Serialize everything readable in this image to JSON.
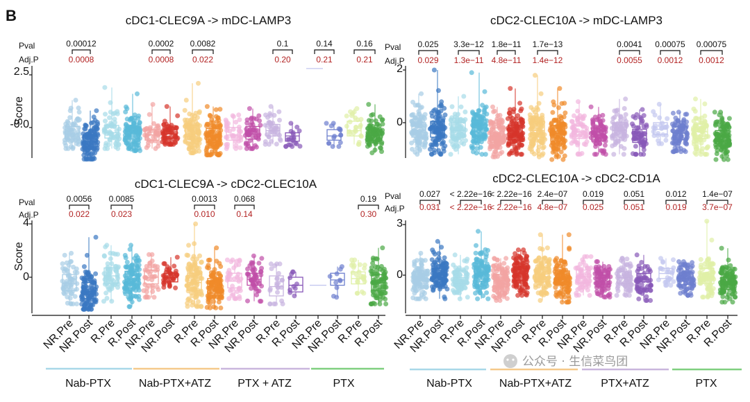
{
  "figure": {
    "panel_label": "B",
    "row_labels": {
      "pval": "Pval",
      "adj": "Adj.P"
    },
    "y_axis_label": "Score",
    "watermark": "公众号 · 生信菜鸟团",
    "group_colors": {
      "Nab-PTX": "#a8d8e8",
      "Nab-PTX+ATZ": "#f5c98a",
      "PTX + ATZ": "#c9b6dd",
      "PTX": "#7fcf7f"
    },
    "sample_colors": [
      "#a8cde6",
      "#3a78c2",
      "#a6dbe8",
      "#59b9d8",
      "#f2a4a2",
      "#d6352b",
      "#f7cd7d",
      "#f08a2a",
      "#f2b6de",
      "#c04fa8",
      "#c7b3df",
      "#8858b8",
      "#c3c7ef",
      "#6d7fce",
      "#dff0a6",
      "#4aa845"
    ],
    "left_x_categories": [
      "NR.Pre",
      "NR.Post",
      "R.Pre",
      "R.Post",
      "NR.Pre",
      "NR.Post",
      "R.Pre",
      "R.Post",
      "NR.Pre",
      "NR.Post",
      "R.Pre",
      "R.Post",
      "NR.Pre",
      "NR.Post",
      "R.Pre",
      "R.Post"
    ],
    "right_x_categories": [
      "NR.Pre",
      "NR.Post",
      "R.Pre",
      "R.Post",
      "NR.Pre",
      "NR.Post",
      "R.Pre",
      "R.Post",
      "NR.Pre",
      "NR.Post",
      "R.Pre",
      "R.Post",
      "NR.Pre",
      "NR.Post",
      "R.Pre",
      "R.Post"
    ],
    "left_groups": [
      "Nab-PTX",
      "Nab-PTX+ATZ",
      "PTX + ATZ",
      "PTX"
    ],
    "right_groups": [
      "Nab-PTX",
      "Nab-PTX+ATZ",
      "PTX+ATZ",
      "PTX"
    ]
  },
  "chart_data": [
    {
      "type": "box",
      "title": "cDC1-CLEC9A -> mDC-LAMP3",
      "ylabel": "Score",
      "yticks": [
        "2.5",
        "-0.0"
      ],
      "ytick_values": [
        2.5,
        0
      ],
      "ylim": [
        -1.6,
        3.3
      ],
      "comparisons": [
        {
          "pair": [
            0,
            1
          ],
          "pval": "0.00012",
          "adj": "0.0008"
        },
        {
          "pair": [
            4,
            5
          ],
          "pval": "0.0002",
          "adj": "0.0008"
        },
        {
          "pair": [
            6,
            7
          ],
          "pval": "0.0082",
          "adj": "0.022"
        },
        {
          "pair": [
            10,
            11
          ],
          "pval": "0.1",
          "adj": "0.20"
        },
        {
          "pair": [
            12,
            13
          ],
          "pval": "0.14",
          "adj": "0.21"
        },
        {
          "pair": [
            14,
            15
          ],
          "pval": "0.16",
          "adj": "0.21"
        }
      ],
      "boxes": [
        {
          "cat": "NR.Pre",
          "q1": -0.55,
          "median": -0.3,
          "q3": 0.05,
          "min": -1.0,
          "max": 1.3,
          "n": 70
        },
        {
          "cat": "NR.Post",
          "q1": -0.9,
          "median": -0.65,
          "q3": -0.35,
          "min": -1.5,
          "max": 0.8,
          "n": 150
        },
        {
          "cat": "R.Pre",
          "q1": -0.5,
          "median": -0.25,
          "q3": 0.1,
          "min": -1.0,
          "max": 1.9,
          "n": 60
        },
        {
          "cat": "R.Post",
          "q1": -0.55,
          "median": -0.3,
          "q3": 0.05,
          "min": -1.1,
          "max": 1.6,
          "n": 160
        },
        {
          "cat": "NR.Pre",
          "q1": -0.6,
          "median": -0.35,
          "q3": -0.1,
          "min": -1.0,
          "max": 1.1,
          "n": 40
        },
        {
          "cat": "NR.Post",
          "q1": -0.5,
          "median": -0.3,
          "q3": -0.1,
          "min": -0.8,
          "max": 1.0,
          "n": 60
        },
        {
          "cat": "R.Pre",
          "q1": -0.55,
          "median": -0.3,
          "q3": 0.1,
          "min": -1.2,
          "max": 2.1,
          "n": 110
        },
        {
          "cat": "R.Post",
          "q1": -0.7,
          "median": -0.4,
          "q3": -0.05,
          "min": -1.3,
          "max": 1.0,
          "n": 140
        },
        {
          "cat": "NR.Pre",
          "q1": -0.6,
          "median": -0.35,
          "q3": 0.0,
          "min": -1.0,
          "max": 0.6,
          "n": 40
        },
        {
          "cat": "NR.Post",
          "q1": -0.55,
          "median": -0.3,
          "q3": 0.05,
          "min": -1.0,
          "max": 0.9,
          "n": 50
        },
        {
          "cat": "R.Pre",
          "q1": -0.4,
          "median": -0.15,
          "q3": 0.15,
          "min": -0.8,
          "max": 1.0,
          "n": 40
        },
        {
          "cat": "R.Post",
          "q1": -0.65,
          "median": -0.4,
          "q3": -0.25,
          "min": -0.9,
          "max": 0.2,
          "n": 20
        },
        {
          "cat": "NR.Pre",
          "q1": null,
          "median": 2.8,
          "q3": null,
          "min": 2.8,
          "max": 2.8,
          "n": 0
        },
        {
          "cat": "NR.Post",
          "q1": -0.6,
          "median": -0.4,
          "q3": -0.1,
          "min": -0.9,
          "max": 0.2,
          "n": 15
        },
        {
          "cat": "R.Pre",
          "q1": -0.4,
          "median": -0.15,
          "q3": 0.3,
          "min": -0.8,
          "max": 0.9,
          "n": 25
        },
        {
          "cat": "R.Post",
          "q1": -0.6,
          "median": -0.35,
          "q3": -0.1,
          "min": -1.2,
          "max": 1.1,
          "n": 90
        }
      ]
    },
    {
      "type": "box",
      "title": "cDC2-CLEC10A -> mDC-LAMP3",
      "ylabel": "",
      "yticks": [
        "2",
        "0"
      ],
      "ytick_values": [
        2,
        0
      ],
      "ylim": [
        -1.6,
        2.5
      ],
      "comparisons": [
        {
          "pair": [
            0,
            1
          ],
          "pval": "0.025",
          "adj": "0.029"
        },
        {
          "pair": [
            2,
            3
          ],
          "pval": "3.3e−12",
          "adj": "1.3e−11"
        },
        {
          "pair": [
            4,
            5
          ],
          "pval": "1.8e−11",
          "adj": "4.8e−11"
        },
        {
          "pair": [
            6,
            7
          ],
          "pval": "1.7e−13",
          "adj": "1.4e−12"
        },
        {
          "pair": [
            10,
            11
          ],
          "pval": "0.0041",
          "adj": "0.0055"
        },
        {
          "pair": [
            12,
            13
          ],
          "pval": "0.00075",
          "adj": "0.0012"
        },
        {
          "pair": [
            14,
            15
          ],
          "pval": "0.00075",
          "adj": "0.0012"
        }
      ],
      "boxes": [
        {
          "cat": "NR.Pre",
          "q1": -0.55,
          "median": -0.3,
          "q3": 0.0,
          "min": -1.2,
          "max": 1.1,
          "n": 150
        },
        {
          "cat": "NR.Post",
          "q1": -0.55,
          "median": -0.25,
          "q3": 0.05,
          "min": -1.2,
          "max": 2.0,
          "n": 200
        },
        {
          "cat": "R.Pre",
          "q1": -0.55,
          "median": -0.3,
          "q3": 0.0,
          "min": -1.2,
          "max": 1.0,
          "n": 80
        },
        {
          "cat": "R.Post",
          "q1": -0.5,
          "median": -0.2,
          "q3": 0.1,
          "min": -1.2,
          "max": 1.9,
          "n": 260
        },
        {
          "cat": "NR.Pre",
          "q1": -0.75,
          "median": -0.5,
          "q3": -0.2,
          "min": -1.3,
          "max": 0.6,
          "n": 150
        },
        {
          "cat": "NR.Post",
          "q1": -0.65,
          "median": -0.4,
          "q3": -0.1,
          "min": -1.2,
          "max": 1.3,
          "n": 150
        },
        {
          "cat": "R.Pre",
          "q1": -0.55,
          "median": -0.3,
          "q3": 0.05,
          "min": -1.3,
          "max": 1.8,
          "n": 260
        },
        {
          "cat": "R.Post",
          "q1": -0.7,
          "median": -0.4,
          "q3": -0.1,
          "min": -1.4,
          "max": 1.3,
          "n": 280
        },
        {
          "cat": "NR.Pre",
          "q1": -0.6,
          "median": -0.35,
          "q3": -0.1,
          "min": -1.2,
          "max": 0.8,
          "n": 60
        },
        {
          "cat": "NR.Post",
          "q1": -0.7,
          "median": -0.45,
          "q3": -0.2,
          "min": -1.2,
          "max": 0.6,
          "n": 80
        },
        {
          "cat": "R.Pre",
          "q1": -0.55,
          "median": -0.3,
          "q3": 0.0,
          "min": -1.2,
          "max": 0.9,
          "n": 70
        },
        {
          "cat": "R.Post",
          "q1": -0.75,
          "median": -0.5,
          "q3": -0.25,
          "min": -1.2,
          "max": 0.5,
          "n": 60
        },
        {
          "cat": "NR.Pre",
          "q1": -0.45,
          "median": -0.25,
          "q3": 0.0,
          "min": -0.8,
          "max": 0.7,
          "n": 25
        },
        {
          "cat": "NR.Post",
          "q1": -0.65,
          "median": -0.4,
          "q3": -0.15,
          "min": -1.1,
          "max": 0.4,
          "n": 90
        },
        {
          "cat": "R.Pre",
          "q1": -0.6,
          "median": -0.35,
          "q3": -0.05,
          "min": -1.2,
          "max": 0.9,
          "n": 80
        },
        {
          "cat": "R.Post",
          "q1": -0.8,
          "median": -0.55,
          "q3": -0.3,
          "min": -1.4,
          "max": 0.4,
          "n": 220
        }
      ]
    },
    {
      "type": "box",
      "title": "cDC1-CLEC9A -> cDC2-CLEC10A",
      "ylabel": "Score",
      "yticks": [
        "4",
        "0"
      ],
      "ytick_values": [
        4,
        0
      ],
      "ylim": [
        -2.6,
        5.8
      ],
      "comparisons": [
        {
          "pair": [
            0,
            1
          ],
          "pval": "0.0056",
          "adj": "0.022"
        },
        {
          "pair": [
            2,
            3
          ],
          "pval": "0.0085",
          "adj": "0.023"
        },
        {
          "pair": [
            6,
            7
          ],
          "pval": "0.0013",
          "adj": "0.010"
        },
        {
          "pair": [
            8,
            9
          ],
          "pval": "0.068",
          "adj": "0.14"
        },
        {
          "pair": [
            14,
            15
          ],
          "pval": "0.19",
          "adj": "0.30"
        }
      ],
      "boxes": [
        {
          "cat": "NR.Pre",
          "q1": -1.0,
          "median": -0.45,
          "q3": 0.2,
          "min": -2.0,
          "max": 1.8,
          "n": 60
        },
        {
          "cat": "NR.Post",
          "q1": -1.6,
          "median": -1.05,
          "q3": -0.4,
          "min": -2.4,
          "max": 3.0,
          "n": 120
        },
        {
          "cat": "R.Pre",
          "q1": -0.5,
          "median": 0.1,
          "q3": 0.7,
          "min": -1.8,
          "max": 2.4,
          "n": 60
        },
        {
          "cat": "R.Post",
          "q1": -0.8,
          "median": -0.15,
          "q3": 0.45,
          "min": -2.2,
          "max": 2.4,
          "n": 130
        },
        {
          "cat": "NR.Pre",
          "q1": -0.5,
          "median": 0.0,
          "q3": 0.5,
          "min": -1.5,
          "max": 1.7,
          "n": 40
        },
        {
          "cat": "NR.Post",
          "q1": -0.35,
          "median": 0.0,
          "q3": 0.3,
          "min": -0.8,
          "max": 1.5,
          "n": 40
        },
        {
          "cat": "R.Pre",
          "q1": -1.0,
          "median": -0.4,
          "q3": 0.3,
          "min": -2.2,
          "max": 4.0,
          "n": 110
        },
        {
          "cat": "R.Post",
          "q1": -1.2,
          "median": -0.7,
          "q3": -0.1,
          "min": -2.3,
          "max": 2.2,
          "n": 130
        },
        {
          "cat": "NR.Pre",
          "q1": -0.8,
          "median": -0.3,
          "q3": 0.3,
          "min": -1.6,
          "max": 1.3,
          "n": 40
        },
        {
          "cat": "NR.Post",
          "q1": -0.6,
          "median": -0.15,
          "q3": 0.3,
          "min": -1.8,
          "max": 1.6,
          "n": 50
        },
        {
          "cat": "R.Pre",
          "q1": -1.4,
          "median": -0.7,
          "q3": 0.1,
          "min": -2.0,
          "max": 1.0,
          "n": 25
        },
        {
          "cat": "R.Post",
          "q1": -1.1,
          "median": -0.6,
          "q3": 0.0,
          "min": -1.4,
          "max": 0.4,
          "n": 10
        },
        {
          "cat": "NR.Pre",
          "q1": null,
          "median": -0.6,
          "q3": null,
          "min": -0.6,
          "max": -0.6,
          "n": 0
        },
        {
          "cat": "NR.Post",
          "q1": -0.6,
          "median": -0.2,
          "q3": 0.3,
          "min": -1.5,
          "max": 0.8,
          "n": 10
        },
        {
          "cat": "R.Pre",
          "q1": -0.5,
          "median": -0.1,
          "q3": 0.4,
          "min": -1.2,
          "max": 1.3,
          "n": 25
        },
        {
          "cat": "R.Post",
          "q1": -1.0,
          "median": -0.4,
          "q3": 0.2,
          "min": -2.0,
          "max": 2.2,
          "n": 80
        }
      ]
    },
    {
      "type": "box",
      "title": "cDC2-CLEC10A -> cDC2-CD1A",
      "ylabel": "",
      "yticks": [
        "3",
        "0"
      ],
      "ytick_values": [
        3,
        0
      ],
      "ylim": [
        -1.9,
        4.4
      ],
      "comparisons": [
        {
          "pair": [
            0,
            1
          ],
          "pval": "0.027",
          "adj": "0.031"
        },
        {
          "pair": [
            2,
            3
          ],
          "pval": "< 2.22e−16",
          "adj": "< 2.22e−16"
        },
        {
          "pair": [
            4,
            5
          ],
          "pval": "< 2.22e−16",
          "adj": "< 2.22e−16"
        },
        {
          "pair": [
            6,
            7
          ],
          "pval": "2.4e−07",
          "adj": "4.8e−07"
        },
        {
          "pair": [
            8,
            9
          ],
          "pval": "0.019",
          "adj": "0.025"
        },
        {
          "pair": [
            10,
            11
          ],
          "pval": "0.051",
          "adj": "0.051"
        },
        {
          "pair": [
            12,
            13
          ],
          "pval": "0.012",
          "adj": "0.019"
        },
        {
          "pair": [
            14,
            15
          ],
          "pval": "1.4e−07",
          "adj": "3.7e−07"
        }
      ],
      "boxes": [
        {
          "cat": "NR.Pre",
          "q1": -0.5,
          "median": -0.15,
          "q3": 0.25,
          "min": -1.4,
          "max": 1.3,
          "n": 150
        },
        {
          "cat": "NR.Post",
          "q1": -0.4,
          "median": 0.0,
          "q3": 0.4,
          "min": -1.4,
          "max": 2.0,
          "n": 200
        },
        {
          "cat": "R.Pre",
          "q1": -0.5,
          "median": -0.15,
          "q3": 0.25,
          "min": -1.4,
          "max": 1.2,
          "n": 80
        },
        {
          "cat": "R.Post",
          "q1": -0.35,
          "median": 0.1,
          "q3": 0.5,
          "min": -1.4,
          "max": 2.6,
          "n": 260
        },
        {
          "cat": "NR.Pre",
          "q1": -0.7,
          "median": -0.35,
          "q3": 0.05,
          "min": -1.5,
          "max": 1.0,
          "n": 150
        },
        {
          "cat": "NR.Post",
          "q1": -0.3,
          "median": 0.1,
          "q3": 0.5,
          "min": -1.2,
          "max": 1.5,
          "n": 150
        },
        {
          "cat": "R.Pre",
          "q1": -0.4,
          "median": 0.05,
          "q3": 0.45,
          "min": -1.5,
          "max": 2.4,
          "n": 260
        },
        {
          "cat": "R.Post",
          "q1": -0.55,
          "median": -0.15,
          "q3": 0.25,
          "min": -1.6,
          "max": 2.4,
          "n": 280
        },
        {
          "cat": "NR.Pre",
          "q1": -0.45,
          "median": -0.1,
          "q3": 0.3,
          "min": -1.2,
          "max": 1.1,
          "n": 60
        },
        {
          "cat": "NR.Post",
          "q1": -0.7,
          "median": -0.35,
          "q3": 0.0,
          "min": -1.3,
          "max": 0.8,
          "n": 80
        },
        {
          "cat": "R.Pre",
          "q1": -0.5,
          "median": -0.15,
          "q3": 0.2,
          "min": -1.2,
          "max": 1.0,
          "n": 70
        },
        {
          "cat": "R.Post",
          "q1": -0.8,
          "median": -0.4,
          "q3": 0.1,
          "min": -1.5,
          "max": 1.2,
          "n": 60
        },
        {
          "cat": "NR.Pre",
          "q1": -0.2,
          "median": 0.1,
          "q3": 0.4,
          "min": -0.6,
          "max": 1.0,
          "n": 25
        },
        {
          "cat": "NR.Post",
          "q1": -0.55,
          "median": -0.2,
          "q3": 0.15,
          "min": -1.2,
          "max": 0.8,
          "n": 90
        },
        {
          "cat": "R.Pre",
          "q1": -0.5,
          "median": -0.1,
          "q3": 0.4,
          "min": -1.3,
          "max": 3.2,
          "n": 80
        },
        {
          "cat": "R.Post",
          "q1": -0.85,
          "median": -0.5,
          "q3": -0.15,
          "min": -1.6,
          "max": 1.6,
          "n": 220
        }
      ]
    }
  ]
}
